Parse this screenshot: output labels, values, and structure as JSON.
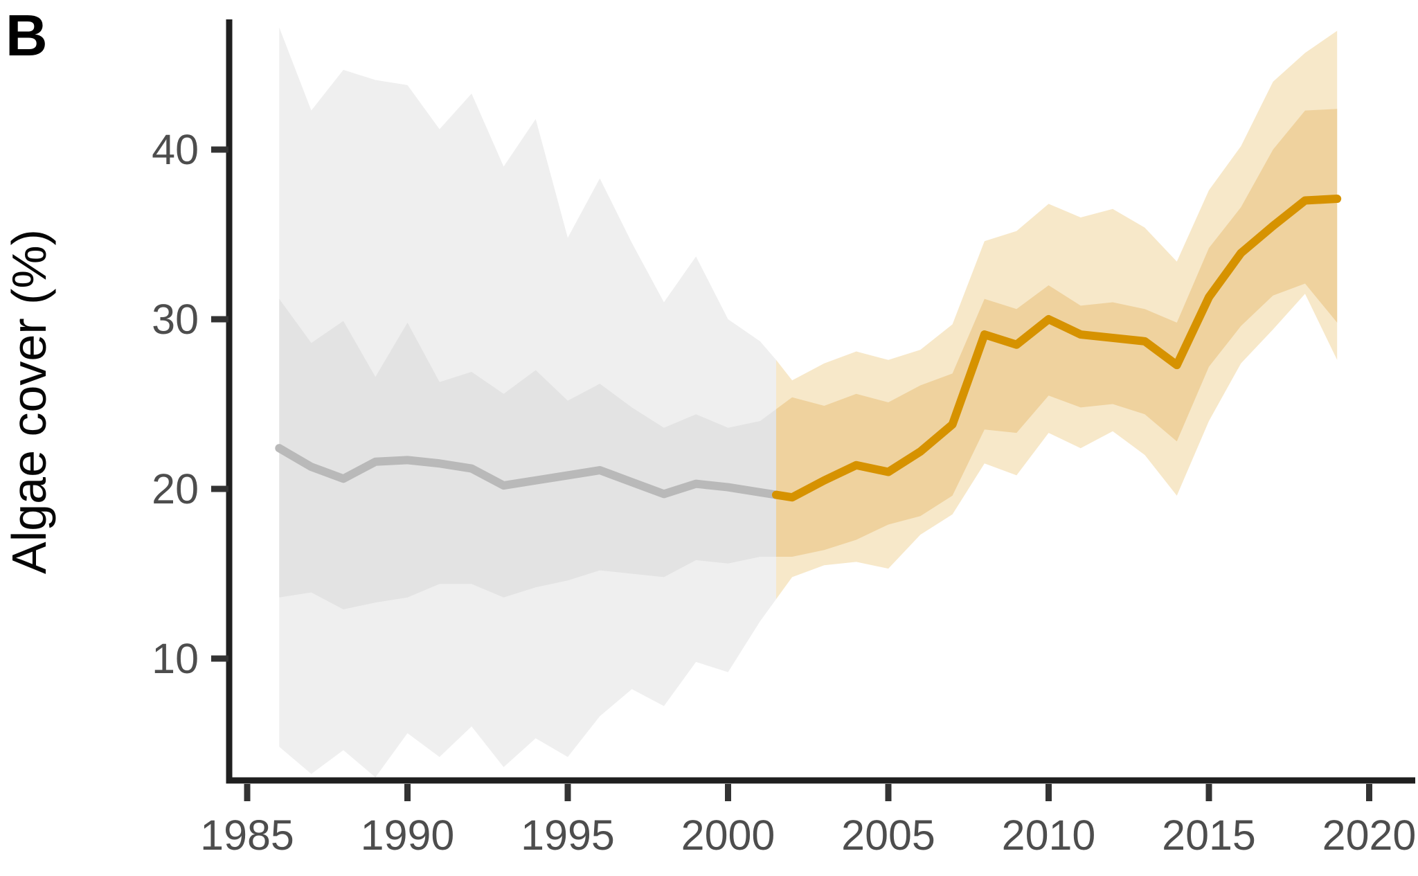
{
  "panel": {
    "label": "B"
  },
  "chart_data": {
    "type": "line",
    "title": "",
    "xlabel": "",
    "ylabel": "Algae cover (%)",
    "panel_label": "B",
    "x_ticks": [
      1985,
      1990,
      1995,
      2000,
      2005,
      2010,
      2015,
      2020
    ],
    "y_ticks": [
      40,
      30,
      20,
      10
    ],
    "xlim": [
      1984.4,
      2021.4
    ],
    "ylim": [
      2.5,
      47.7
    ],
    "grid": "off",
    "legend": "none",
    "colors": {
      "gray_line": "#b9b9b9",
      "gray_band_outer": "#efefef",
      "gray_band_inner": "#e3e3e3",
      "orange_line": "#d69200",
      "orange_band_outer": "#f7e8c9",
      "orange_band_inner": "#efd29e",
      "axis": "#1f1f1f",
      "tick": "#333333",
      "tick_label": "#4d4d4d"
    },
    "transition_x": 2001.5,
    "series": [
      {
        "name": "historical-gray",
        "color": "#b9b9b9",
        "x": [
          1986,
          1987,
          1988,
          1989,
          1990,
          1991,
          1992,
          1993,
          1994,
          1995,
          1996,
          1997,
          1998,
          1999,
          2000,
          2001,
          2001.5
        ],
        "values": [
          22.4,
          21.3,
          20.6,
          21.6,
          21.7,
          21.5,
          21.2,
          20.2,
          20.5,
          20.8,
          21.1,
          20.4,
          19.7,
          20.3,
          20.1,
          19.8,
          19.65
        ]
      },
      {
        "name": "recent-orange",
        "color": "#d69200",
        "x": [
          2001.5,
          2002,
          2003,
          2004,
          2005,
          2006,
          2007,
          2008,
          2009,
          2010,
          2011,
          2012,
          2013,
          2014,
          2015,
          2016,
          2017,
          2018,
          2019
        ],
        "values": [
          19.65,
          19.5,
          20.5,
          21.4,
          21.0,
          22.2,
          23.8,
          29.1,
          28.5,
          30.0,
          29.1,
          28.9,
          28.7,
          27.3,
          31.3,
          33.9,
          35.5,
          37.0,
          37.1
        ]
      }
    ],
    "bands": [
      {
        "name": "gray-outer",
        "color": "#efefef",
        "x": [
          1986,
          1987,
          1988,
          1989,
          1990,
          1991,
          1992,
          1993,
          1994,
          1995,
          1996,
          1997,
          1998,
          1999,
          2000,
          2001,
          2001.5
        ],
        "top": [
          47.2,
          42.3,
          44.7,
          44.1,
          43.8,
          41.2,
          43.3,
          39.0,
          41.8,
          34.8,
          38.3,
          34.5,
          31.0,
          33.7,
          30.0,
          28.7,
          27.6
        ],
        "bottom": [
          4.8,
          3.2,
          4.6,
          3.0,
          5.6,
          4.2,
          6.0,
          3.6,
          5.3,
          4.2,
          6.6,
          8.2,
          7.2,
          9.8,
          9.2,
          12.2,
          13.5
        ]
      },
      {
        "name": "orange-outer",
        "color": "#f7e8c9",
        "x": [
          2001.5,
          2002,
          2003,
          2004,
          2005,
          2006,
          2007,
          2008,
          2009,
          2010,
          2011,
          2012,
          2013,
          2014,
          2015,
          2016,
          2017,
          2018,
          2019
        ],
        "top": [
          27.6,
          26.4,
          27.4,
          28.1,
          27.6,
          28.2,
          29.7,
          34.6,
          35.2,
          36.8,
          36.0,
          36.5,
          35.4,
          33.4,
          37.6,
          40.2,
          44.0,
          45.7,
          47.0
        ],
        "bottom": [
          13.5,
          14.8,
          15.5,
          15.7,
          15.3,
          17.3,
          18.5,
          21.5,
          20.8,
          23.3,
          22.4,
          23.4,
          22.0,
          19.6,
          24.0,
          27.4,
          29.4,
          31.5,
          27.6
        ]
      },
      {
        "name": "gray-inner",
        "color": "#e3e3e3",
        "x": [
          1986,
          1987,
          1988,
          1989,
          1990,
          1991,
          1992,
          1993,
          1994,
          1995,
          1996,
          1997,
          1998,
          1999,
          2000,
          2001,
          2001.5
        ],
        "top": [
          31.2,
          28.6,
          29.9,
          26.6,
          29.8,
          26.3,
          26.9,
          25.6,
          27.0,
          25.2,
          26.2,
          24.8,
          23.6,
          24.4,
          23.6,
          24.0,
          24.7
        ],
        "bottom": [
          13.6,
          13.9,
          12.9,
          13.3,
          13.6,
          14.4,
          14.4,
          13.6,
          14.2,
          14.6,
          15.2,
          15.0,
          14.8,
          15.8,
          15.6,
          16.0,
          16.0
        ]
      },
      {
        "name": "orange-inner",
        "color": "#efd29e",
        "x": [
          2001.5,
          2002,
          2003,
          2004,
          2005,
          2006,
          2007,
          2008,
          2009,
          2010,
          2011,
          2012,
          2013,
          2014,
          2015,
          2016,
          2017,
          2018,
          2019
        ],
        "top": [
          24.7,
          25.4,
          24.9,
          25.6,
          25.1,
          26.1,
          26.8,
          31.2,
          30.6,
          32.0,
          30.8,
          31.0,
          30.6,
          29.8,
          34.2,
          36.6,
          40.0,
          42.3,
          42.4
        ],
        "bottom": [
          16.0,
          16.0,
          16.4,
          17.0,
          17.9,
          18.4,
          19.6,
          23.5,
          23.3,
          25.5,
          24.8,
          25.0,
          24.4,
          22.8,
          27.2,
          29.6,
          31.4,
          32.1,
          29.8
        ]
      }
    ]
  }
}
